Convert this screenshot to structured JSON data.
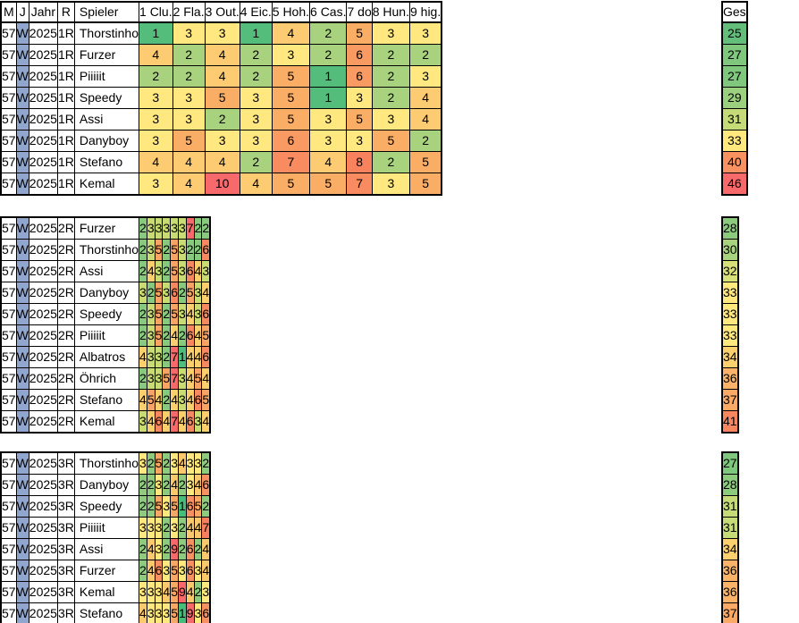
{
  "header": {
    "columns": [
      "M",
      "J",
      "Jahr",
      "R",
      "Spieler",
      "1 Clu.",
      "2 Fla.",
      "3 Out.",
      "4 Eic.",
      "5 Hoh.",
      "6 Cas.",
      "7 do",
      "8 Hun.",
      "9 hig."
    ],
    "total_label": "Ges"
  },
  "colors": {
    "week_cell_blue": "#91A6CF",
    "border_black": "#000000",
    "hole_scales": {
      "1R": {
        "1": "#54BD7C",
        "2": "#A9D27E",
        "3": "#FFE880",
        "4": "#FCCB72",
        "5": "#FAAD65",
        "6": "#F89A62",
        "7": "#F88B60",
        "8": "#F8815E",
        "10": "#F8696B"
      },
      "2R": {
        "1": "#4EBD7D",
        "2": "#87CA7D",
        "3": "#C9DC73",
        "4": "#FBCE6E",
        "5": "#F9A465",
        "6": "#F8885F",
        "7": "#F8696B"
      },
      "3R": {
        "1": "#47BD7C",
        "2": "#8FCB7E",
        "3": "#FFE97E",
        "4": "#FBC96D",
        "5": "#F9A764",
        "6": "#F89161",
        "7": "#F87E5D",
        "9": "#F8696B"
      }
    },
    "total_scale": {
      "25": "#63BE7B",
      "27": "#7FC77D",
      "28": "#8CCB7D",
      "29": "#9BD07E",
      "30": "#A8D37E",
      "31": "#C5DB78",
      "32": "#D8E07A",
      "33": "#FFE97E",
      "34": "#FDD06F",
      "36": "#FBB369",
      "37": "#FAA966",
      "40": "#F99161",
      "41": "#F8875F",
      "46": "#F8696B"
    }
  },
  "chart_data": {
    "type": "table",
    "note": "Minigolf score sheet, 3 rounds, 9 holes per round, Ges = total"
  },
  "sections": [
    {
      "m": "57",
      "j": "W",
      "jahr": "2025",
      "round": "1R",
      "rows": [
        {
          "player": "Thorstinho",
          "holes": [
            1,
            3,
            3,
            1,
            4,
            2,
            5,
            3,
            3
          ],
          "total": 25
        },
        {
          "player": "Furzer",
          "holes": [
            4,
            2,
            4,
            2,
            3,
            2,
            6,
            2,
            2
          ],
          "total": 27
        },
        {
          "player": "Piiiiit",
          "holes": [
            2,
            2,
            4,
            2,
            5,
            1,
            6,
            2,
            3
          ],
          "total": 27
        },
        {
          "player": "Speedy",
          "holes": [
            3,
            3,
            5,
            3,
            5,
            1,
            3,
            2,
            4
          ],
          "total": 29
        },
        {
          "player": "Assi",
          "holes": [
            3,
            3,
            2,
            3,
            5,
            3,
            5,
            3,
            4
          ],
          "total": 31
        },
        {
          "player": "Danyboy",
          "holes": [
            3,
            5,
            3,
            3,
            6,
            3,
            3,
            5,
            2
          ],
          "total": 33
        },
        {
          "player": "Stefano",
          "holes": [
            4,
            4,
            4,
            2,
            7,
            4,
            8,
            2,
            5
          ],
          "total": 40
        },
        {
          "player": "Kemal",
          "holes": [
            3,
            4,
            10,
            4,
            5,
            5,
            7,
            3,
            5
          ],
          "total": 46
        }
      ]
    },
    {
      "m": "57",
      "j": "W",
      "jahr": "2025",
      "round": "2R",
      "rows": [
        {
          "player": "Furzer",
          "holes": [
            2,
            3,
            3,
            3,
            3,
            3,
            7,
            2,
            2
          ],
          "total": 28
        },
        {
          "player": "Thorstinho",
          "holes": [
            2,
            3,
            5,
            2,
            5,
            3,
            2,
            2,
            6
          ],
          "total": 30
        },
        {
          "player": "Assi",
          "holes": [
            2,
            4,
            3,
            2,
            5,
            3,
            6,
            4,
            3
          ],
          "total": 32
        },
        {
          "player": "Danyboy",
          "holes": [
            3,
            2,
            5,
            3,
            6,
            2,
            5,
            3,
            4
          ],
          "total": 33
        },
        {
          "player": "Speedy",
          "holes": [
            2,
            3,
            5,
            2,
            5,
            3,
            4,
            3,
            6
          ],
          "total": 33
        },
        {
          "player": "Piiiiit",
          "holes": [
            2,
            3,
            5,
            2,
            4,
            2,
            6,
            4,
            5
          ],
          "total": 33
        },
        {
          "player": "Albatros",
          "holes": [
            4,
            3,
            3,
            2,
            7,
            1,
            4,
            4,
            6
          ],
          "total": 34
        },
        {
          "player": "Öhrich",
          "holes": [
            2,
            3,
            3,
            5,
            7,
            3,
            4,
            5,
            4
          ],
          "total": 36
        },
        {
          "player": "Stefano",
          "holes": [
            4,
            5,
            4,
            2,
            4,
            3,
            4,
            6,
            5
          ],
          "total": 37
        },
        {
          "player": "Kemal",
          "holes": [
            3,
            4,
            6,
            4,
            7,
            4,
            6,
            3,
            4
          ],
          "total": 41
        }
      ]
    },
    {
      "m": "57",
      "j": "W",
      "jahr": "2025",
      "round": "3R",
      "rows": [
        {
          "player": "Thorstinho",
          "holes": [
            3,
            2,
            5,
            2,
            3,
            4,
            3,
            3,
            2
          ],
          "total": 27
        },
        {
          "player": "Danyboy",
          "holes": [
            2,
            2,
            3,
            2,
            4,
            2,
            3,
            4,
            6
          ],
          "total": 28
        },
        {
          "player": "Speedy",
          "holes": [
            2,
            2,
            5,
            3,
            5,
            1,
            6,
            5,
            2
          ],
          "total": 31
        },
        {
          "player": "Piiiiit",
          "holes": [
            3,
            3,
            3,
            2,
            3,
            2,
            4,
            4,
            7
          ],
          "total": 31
        },
        {
          "player": "Assi",
          "holes": [
            2,
            4,
            3,
            2,
            9,
            2,
            6,
            2,
            4
          ],
          "total": 34
        },
        {
          "player": "Furzer",
          "holes": [
            2,
            4,
            6,
            3,
            5,
            3,
            6,
            3,
            4
          ],
          "total": 36
        },
        {
          "player": "Kemal",
          "holes": [
            3,
            3,
            3,
            4,
            5,
            9,
            4,
            2,
            3
          ],
          "total": 36
        },
        {
          "player": "Stefano",
          "holes": [
            4,
            3,
            3,
            3,
            5,
            1,
            9,
            3,
            6
          ],
          "total": 37
        }
      ]
    }
  ]
}
